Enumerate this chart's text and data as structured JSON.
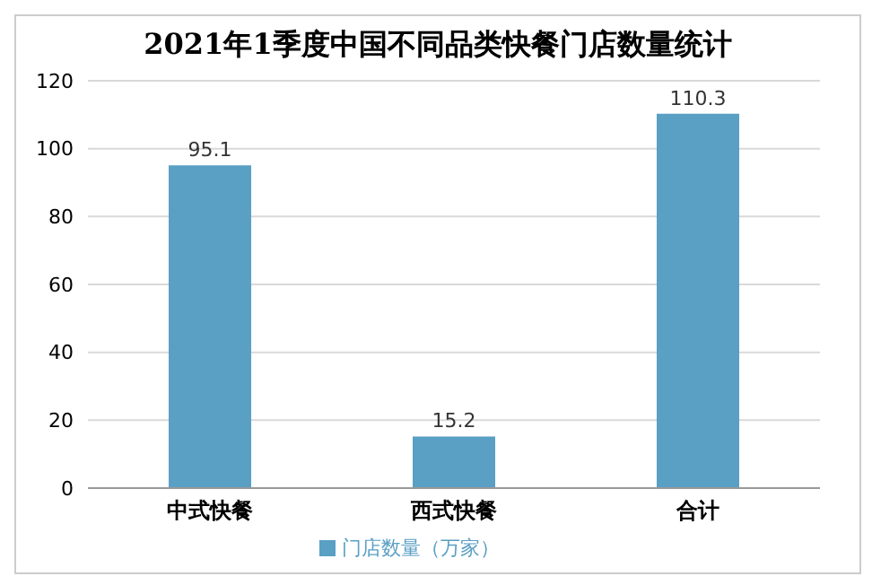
{
  "chart_data": {
    "type": "bar",
    "title": "2021年1季度中国不同品类快餐门店数量统计",
    "categories": [
      "中式快餐",
      "西式快餐",
      "合计"
    ],
    "series": [
      {
        "name": "门店数量（万家）",
        "color": "#5a9fc4",
        "values": [
          95.1,
          15.2,
          110.3
        ]
      }
    ],
    "ylim": [
      0,
      120
    ],
    "yticks": [
      0,
      20,
      40,
      60,
      80,
      100,
      120
    ],
    "grid": "y",
    "legend": "bottom",
    "data_labels": true
  }
}
